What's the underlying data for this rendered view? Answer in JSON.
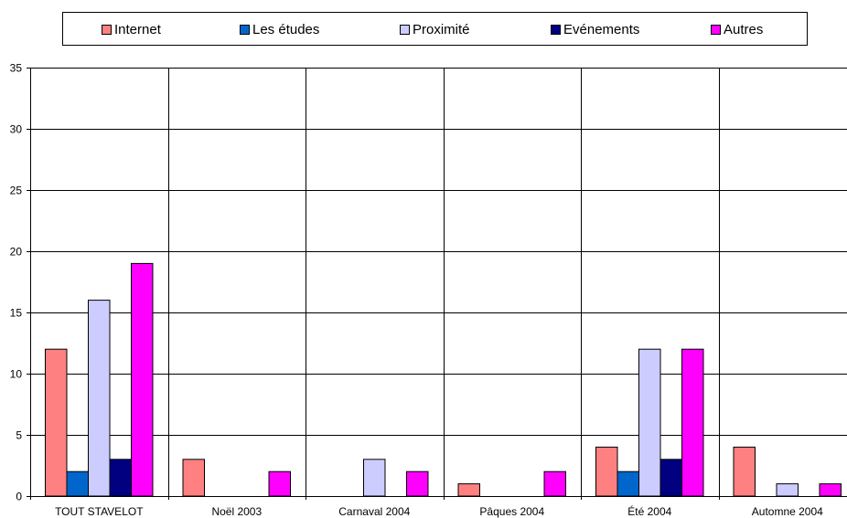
{
  "chart_data": {
    "type": "bar",
    "title": "",
    "xlabel": "",
    "ylabel": "",
    "ylim": [
      0,
      35
    ],
    "yticks": [
      0,
      5,
      10,
      15,
      20,
      25,
      30,
      35
    ],
    "grid": true,
    "legend_position": "top",
    "categories": [
      "TOUT STAVELOT",
      "Noël 2003",
      "Carnaval 2004",
      "Pâques 2004",
      "Été 2004",
      "Automne 2004"
    ],
    "series": [
      {
        "name": "Internet",
        "color": "#ff8080",
        "values": [
          12,
          3,
          0,
          1,
          4,
          4
        ]
      },
      {
        "name": "Les études",
        "color": "#0066cc",
        "values": [
          2,
          0,
          0,
          0,
          2,
          0
        ]
      },
      {
        "name": "Proximité",
        "color": "#ccccff",
        "values": [
          16,
          0,
          3,
          0,
          12,
          1
        ]
      },
      {
        "name": "Evénements",
        "color": "#000080",
        "values": [
          3,
          0,
          0,
          0,
          3,
          0
        ]
      },
      {
        "name": "Autres",
        "color": "#ff00ff",
        "values": [
          19,
          2,
          2,
          2,
          12,
          1
        ]
      }
    ]
  }
}
